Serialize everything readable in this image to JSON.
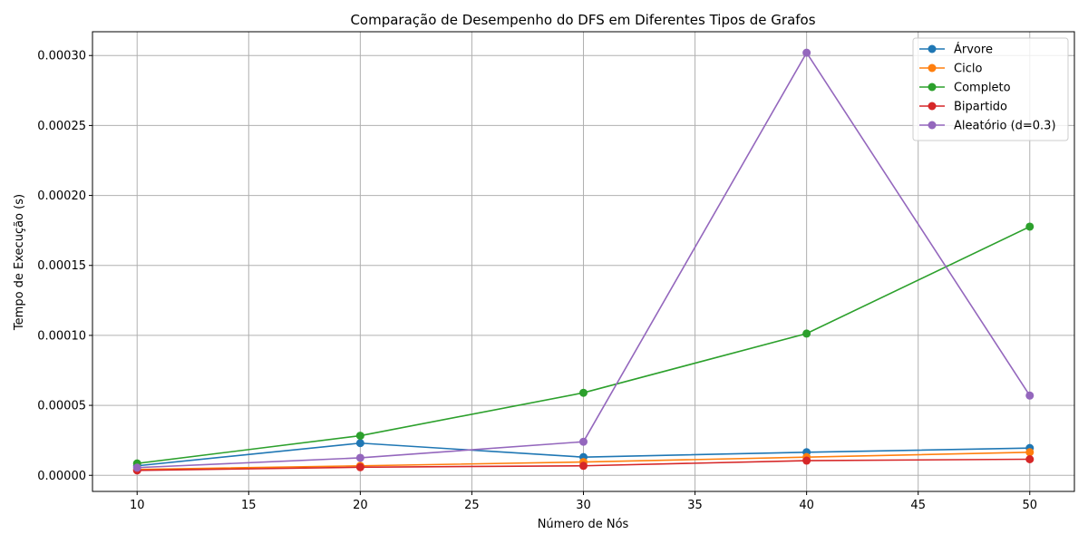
{
  "chart_data": {
    "type": "line",
    "title": "Comparação de Desempenho do DFS em Diferentes Tipos de Grafos",
    "xlabel": "Número de Nós",
    "ylabel": "Tempo de Execução (s)",
    "x": [
      10,
      20,
      30,
      40,
      50
    ],
    "xlim": [
      8,
      52
    ],
    "ylim": [
      -1.15e-05,
      0.000317
    ],
    "xticks": [
      10,
      15,
      20,
      25,
      30,
      35,
      40,
      45,
      50
    ],
    "xtick_labels": [
      "10",
      "15",
      "20",
      "25",
      "30",
      "35",
      "40",
      "45",
      "50"
    ],
    "yticks": [
      0,
      5e-05,
      0.0001,
      0.00015,
      0.0002,
      0.00025,
      0.0003
    ],
    "ytick_labels": [
      "0.00000",
      "0.00005",
      "0.00010",
      "0.00015",
      "0.00020",
      "0.00025",
      "0.00030"
    ],
    "grid": true,
    "legend_position": "top-right",
    "series": [
      {
        "name": "Árvore",
        "color": "#1f77b4",
        "values": [
          6.8e-06,
          2.3e-05,
          1.3e-05,
          1.65e-05,
          1.95e-05
        ]
      },
      {
        "name": "Ciclo",
        "color": "#ff7f0e",
        "values": [
          4.2e-06,
          6.8e-06,
          9.5e-06,
          1.3e-05,
          1.65e-05
        ]
      },
      {
        "name": "Completo",
        "color": "#2ca02c",
        "values": [
          8.5e-06,
          2.83e-05,
          5.9e-05,
          0.0001013,
          0.0001777
        ]
      },
      {
        "name": "Bipartido",
        "color": "#d62728",
        "values": [
          3.5e-06,
          5.8e-06,
          6.8e-06,
          1.05e-05,
          1.15e-05
        ]
      },
      {
        "name": "Aleatório (d=0.3)",
        "color": "#9467bd",
        "values": [
          5.5e-06,
          1.25e-05,
          2.4e-05,
          0.000302,
          5.7e-05
        ]
      }
    ]
  }
}
